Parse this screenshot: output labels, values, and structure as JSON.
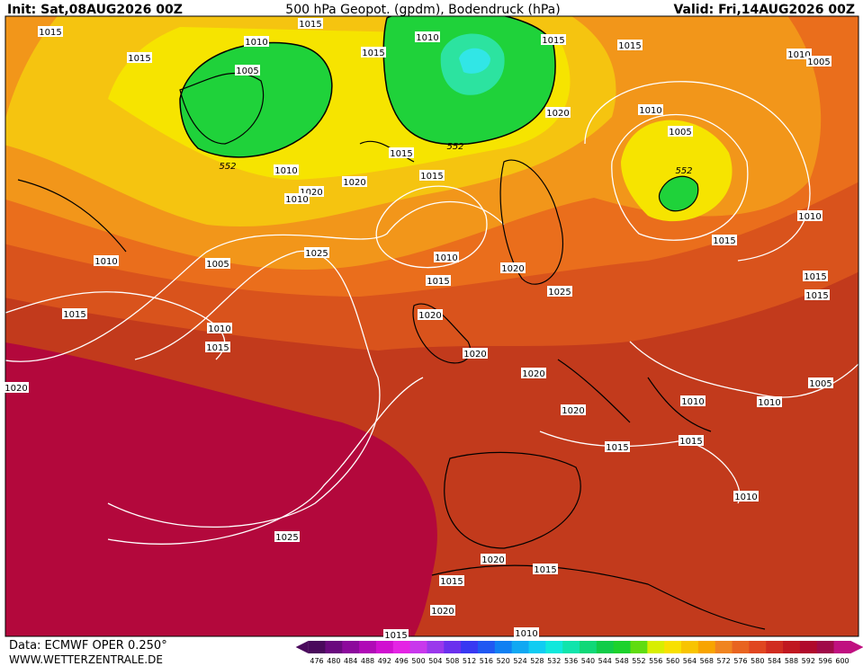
{
  "header": {
    "init": "Init: Sat,08AUG2026 00Z",
    "title": "500 hPa Geopot. (gpdm), Bodendruck (hPa)",
    "valid": "Valid: Fri,14AUG2026 00Z"
  },
  "footer": {
    "source": "Data: ECMWF OPER 0.250°",
    "website": "WWW.WETTERZENTRALE.DE"
  },
  "isobar_labels": [
    "1015",
    "1015",
    "1010",
    "1005",
    "1015",
    "1015",
    "1010",
    "1015",
    "1015",
    "1010",
    "1005",
    "1020",
    "1010",
    "1005",
    "1015",
    "1010",
    "1015",
    "1020",
    "1020",
    "1010",
    "1010",
    "1015",
    "1010",
    "1005",
    "1025",
    "1010",
    "1015",
    "1020",
    "1025",
    "1015",
    "1015",
    "1015",
    "1020",
    "1010",
    "1015",
    "1020",
    "1020",
    "1020",
    "1005",
    "1010",
    "1010",
    "1020",
    "1015",
    "1015",
    "1010",
    "1025",
    "1020",
    "1015",
    "1015",
    "1020",
    "1015",
    "1010"
  ],
  "geopotential_labels": [
    "552",
    "552",
    "552"
  ],
  "colorbar": {
    "values": [
      476,
      480,
      484,
      488,
      492,
      496,
      500,
      504,
      508,
      512,
      516,
      520,
      524,
      528,
      532,
      536,
      540,
      544,
      548,
      552,
      556,
      560,
      564,
      568,
      572,
      576,
      580,
      584,
      588,
      592,
      596,
      600
    ],
    "colors": [
      "#4a0a5c",
      "#6a0a7e",
      "#8c0a9c",
      "#b00ab6",
      "#d010d0",
      "#e424e4",
      "#c838ec",
      "#9a38ec",
      "#6a30ee",
      "#3838f2",
      "#2058f2",
      "#1080f2",
      "#10a8f2",
      "#10ccf2",
      "#10e8dc",
      "#10e4ac",
      "#10d878",
      "#10cc48",
      "#1cd22c",
      "#60dc10",
      "#d8ee00",
      "#f8e000",
      "#f8c400",
      "#f8a400",
      "#f08420",
      "#e86420",
      "#e04620",
      "#d02c20",
      "#c01820",
      "#b00a2c",
      "#a00a48",
      "#c01080"
    ]
  }
}
